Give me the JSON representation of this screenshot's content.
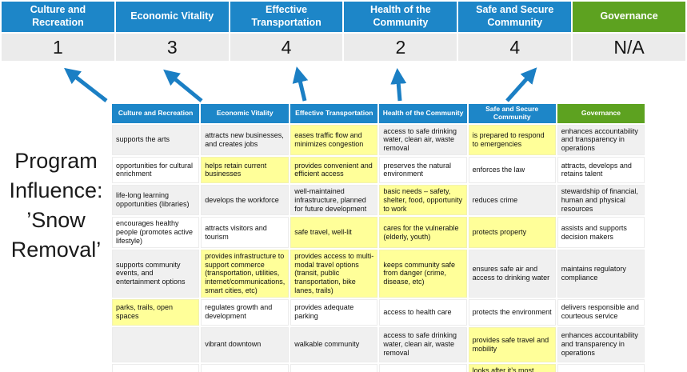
{
  "colors": {
    "blue": "#1d86c8",
    "green": "#5da220",
    "yellow": "#ffff99",
    "band_gray": "#f0f0f0",
    "score_bg": "#ebebeb",
    "arrow_blue": "#1b7fc4"
  },
  "program_title": {
    "full_text": "Program Influence: ’Snow Removal’",
    "line1": "Program",
    "line2": "Influence:",
    "line3": "’Snow",
    "line4": "Removal’"
  },
  "scoreboard": {
    "columns": [
      {
        "label": "Culture and Recreation",
        "score": "1",
        "theme": "blue"
      },
      {
        "label": "Economic Vitality",
        "score": "3",
        "theme": "blue"
      },
      {
        "label": "Effective Transportation",
        "score": "4",
        "theme": "blue"
      },
      {
        "label": "Health of the Community",
        "score": "2",
        "theme": "blue"
      },
      {
        "label": "Safe and Secure Community",
        "score": "4",
        "theme": "blue"
      },
      {
        "label": "Governance",
        "score": "N/A",
        "theme": "green"
      }
    ]
  },
  "arrows": [
    {
      "points_to": "Culture and Recreation"
    },
    {
      "points_to": "Economic Vitality"
    },
    {
      "points_to": "Effective Transportation"
    },
    {
      "points_to": "Health of the Community"
    },
    {
      "points_to": "Safe and Secure Community"
    }
  ],
  "matrix": {
    "columns": [
      {
        "label": "Culture and Recreation",
        "theme": "blue"
      },
      {
        "label": "Economic Vitality",
        "theme": "blue"
      },
      {
        "label": "Effective Transportation",
        "theme": "blue"
      },
      {
        "label": "Health of the Community",
        "theme": "blue"
      },
      {
        "label": "Safe and Secure Community",
        "theme": "blue"
      },
      {
        "label": "Governance",
        "theme": "green"
      }
    ],
    "rows": [
      {
        "cells": [
          {
            "text": "supports the arts",
            "bg": "gray"
          },
          {
            "text": "attracts new businesses, and creates jobs",
            "bg": "gray"
          },
          {
            "text": "eases traffic flow and minimizes congestion",
            "bg": "yellow"
          },
          {
            "text": "access to safe drinking water, clean air, waste removal",
            "bg": "gray"
          },
          {
            "text": "is prepared to respond to emergencies",
            "bg": "yellow"
          },
          {
            "text": "enhances accountability and transparency in operations",
            "bg": "gray"
          }
        ]
      },
      {
        "cells": [
          {
            "text": "opportunities for cultural enrichment",
            "bg": "white"
          },
          {
            "text": "helps retain current businesses",
            "bg": "yellow"
          },
          {
            "text": "provides convenient and efficient access",
            "bg": "yellow"
          },
          {
            "text": "preserves the natural environment",
            "bg": "white"
          },
          {
            "text": "enforces the law",
            "bg": "white"
          },
          {
            "text": "attracts, develops and retains talent",
            "bg": "white"
          }
        ]
      },
      {
        "cells": [
          {
            "text": "life-long learning opportunities (libraries)",
            "bg": "gray"
          },
          {
            "text": "develops the workforce",
            "bg": "gray"
          },
          {
            "text": "well-maintained infrastructure, planned for future development",
            "bg": "gray"
          },
          {
            "text": "basic needs – safety, shelter, food, opportunity to work",
            "bg": "yellow"
          },
          {
            "text": "reduces crime",
            "bg": "gray"
          },
          {
            "text": "stewardship of financial, human and physical resources",
            "bg": "gray"
          }
        ]
      },
      {
        "cells": [
          {
            "text": "encourages healthy people (promotes active lifestyle)",
            "bg": "white"
          },
          {
            "text": "attracts visitors and tourism",
            "bg": "white"
          },
          {
            "text": "safe travel, well-lit",
            "bg": "yellow"
          },
          {
            "text": "cares for the vulnerable (elderly, youth)",
            "bg": "yellow"
          },
          {
            "text": "protects property",
            "bg": "yellow"
          },
          {
            "text": "assists and supports decision makers",
            "bg": "white"
          }
        ]
      },
      {
        "cells": [
          {
            "text": "supports community events, and entertainment options",
            "bg": "gray"
          },
          {
            "text": "provides infrastructure to support commerce (transportation, utilities, internet/communications, smart cities, etc)",
            "bg": "yellow"
          },
          {
            "text": "provides access to multi-modal travel options (transit, public transportation, bike lanes, trails)",
            "bg": "yellow"
          },
          {
            "text": "keeps community safe from danger (crime, disease, etc)",
            "bg": "yellow"
          },
          {
            "text": "ensures safe air and access to drinking water",
            "bg": "gray"
          },
          {
            "text": "maintains regulatory compliance",
            "bg": "gray"
          }
        ]
      },
      {
        "cells": [
          {
            "text": "parks, trails, open spaces",
            "bg": "yellow"
          },
          {
            "text": "regulates growth and development",
            "bg": "white"
          },
          {
            "text": "provides adequate parking",
            "bg": "white"
          },
          {
            "text": "access to health care",
            "bg": "white"
          },
          {
            "text": "protects the environment",
            "bg": "white"
          },
          {
            "text": "delivers responsible and courteous service",
            "bg": "white"
          }
        ]
      },
      {
        "cells": [
          {
            "text": "",
            "bg": "gray"
          },
          {
            "text": "vibrant downtown",
            "bg": "gray"
          },
          {
            "text": "walkable community",
            "bg": "gray"
          },
          {
            "text": "access to safe drinking water, clean air, waste removal",
            "bg": "gray"
          },
          {
            "text": "provides safe travel and mobility",
            "bg": "yellow"
          },
          {
            "text": "enhances accountability and transparency in operations",
            "bg": "gray"
          }
        ]
      },
      {
        "cells": [
          {
            "text": "",
            "bg": "white"
          },
          {
            "text": "",
            "bg": "white"
          },
          {
            "text": "",
            "bg": "white"
          },
          {
            "text": "",
            "bg": "white"
          },
          {
            "text": "looks after it’s most vulnerable",
            "bg": "yellow"
          },
          {
            "text": "",
            "bg": "white"
          }
        ]
      }
    ]
  }
}
